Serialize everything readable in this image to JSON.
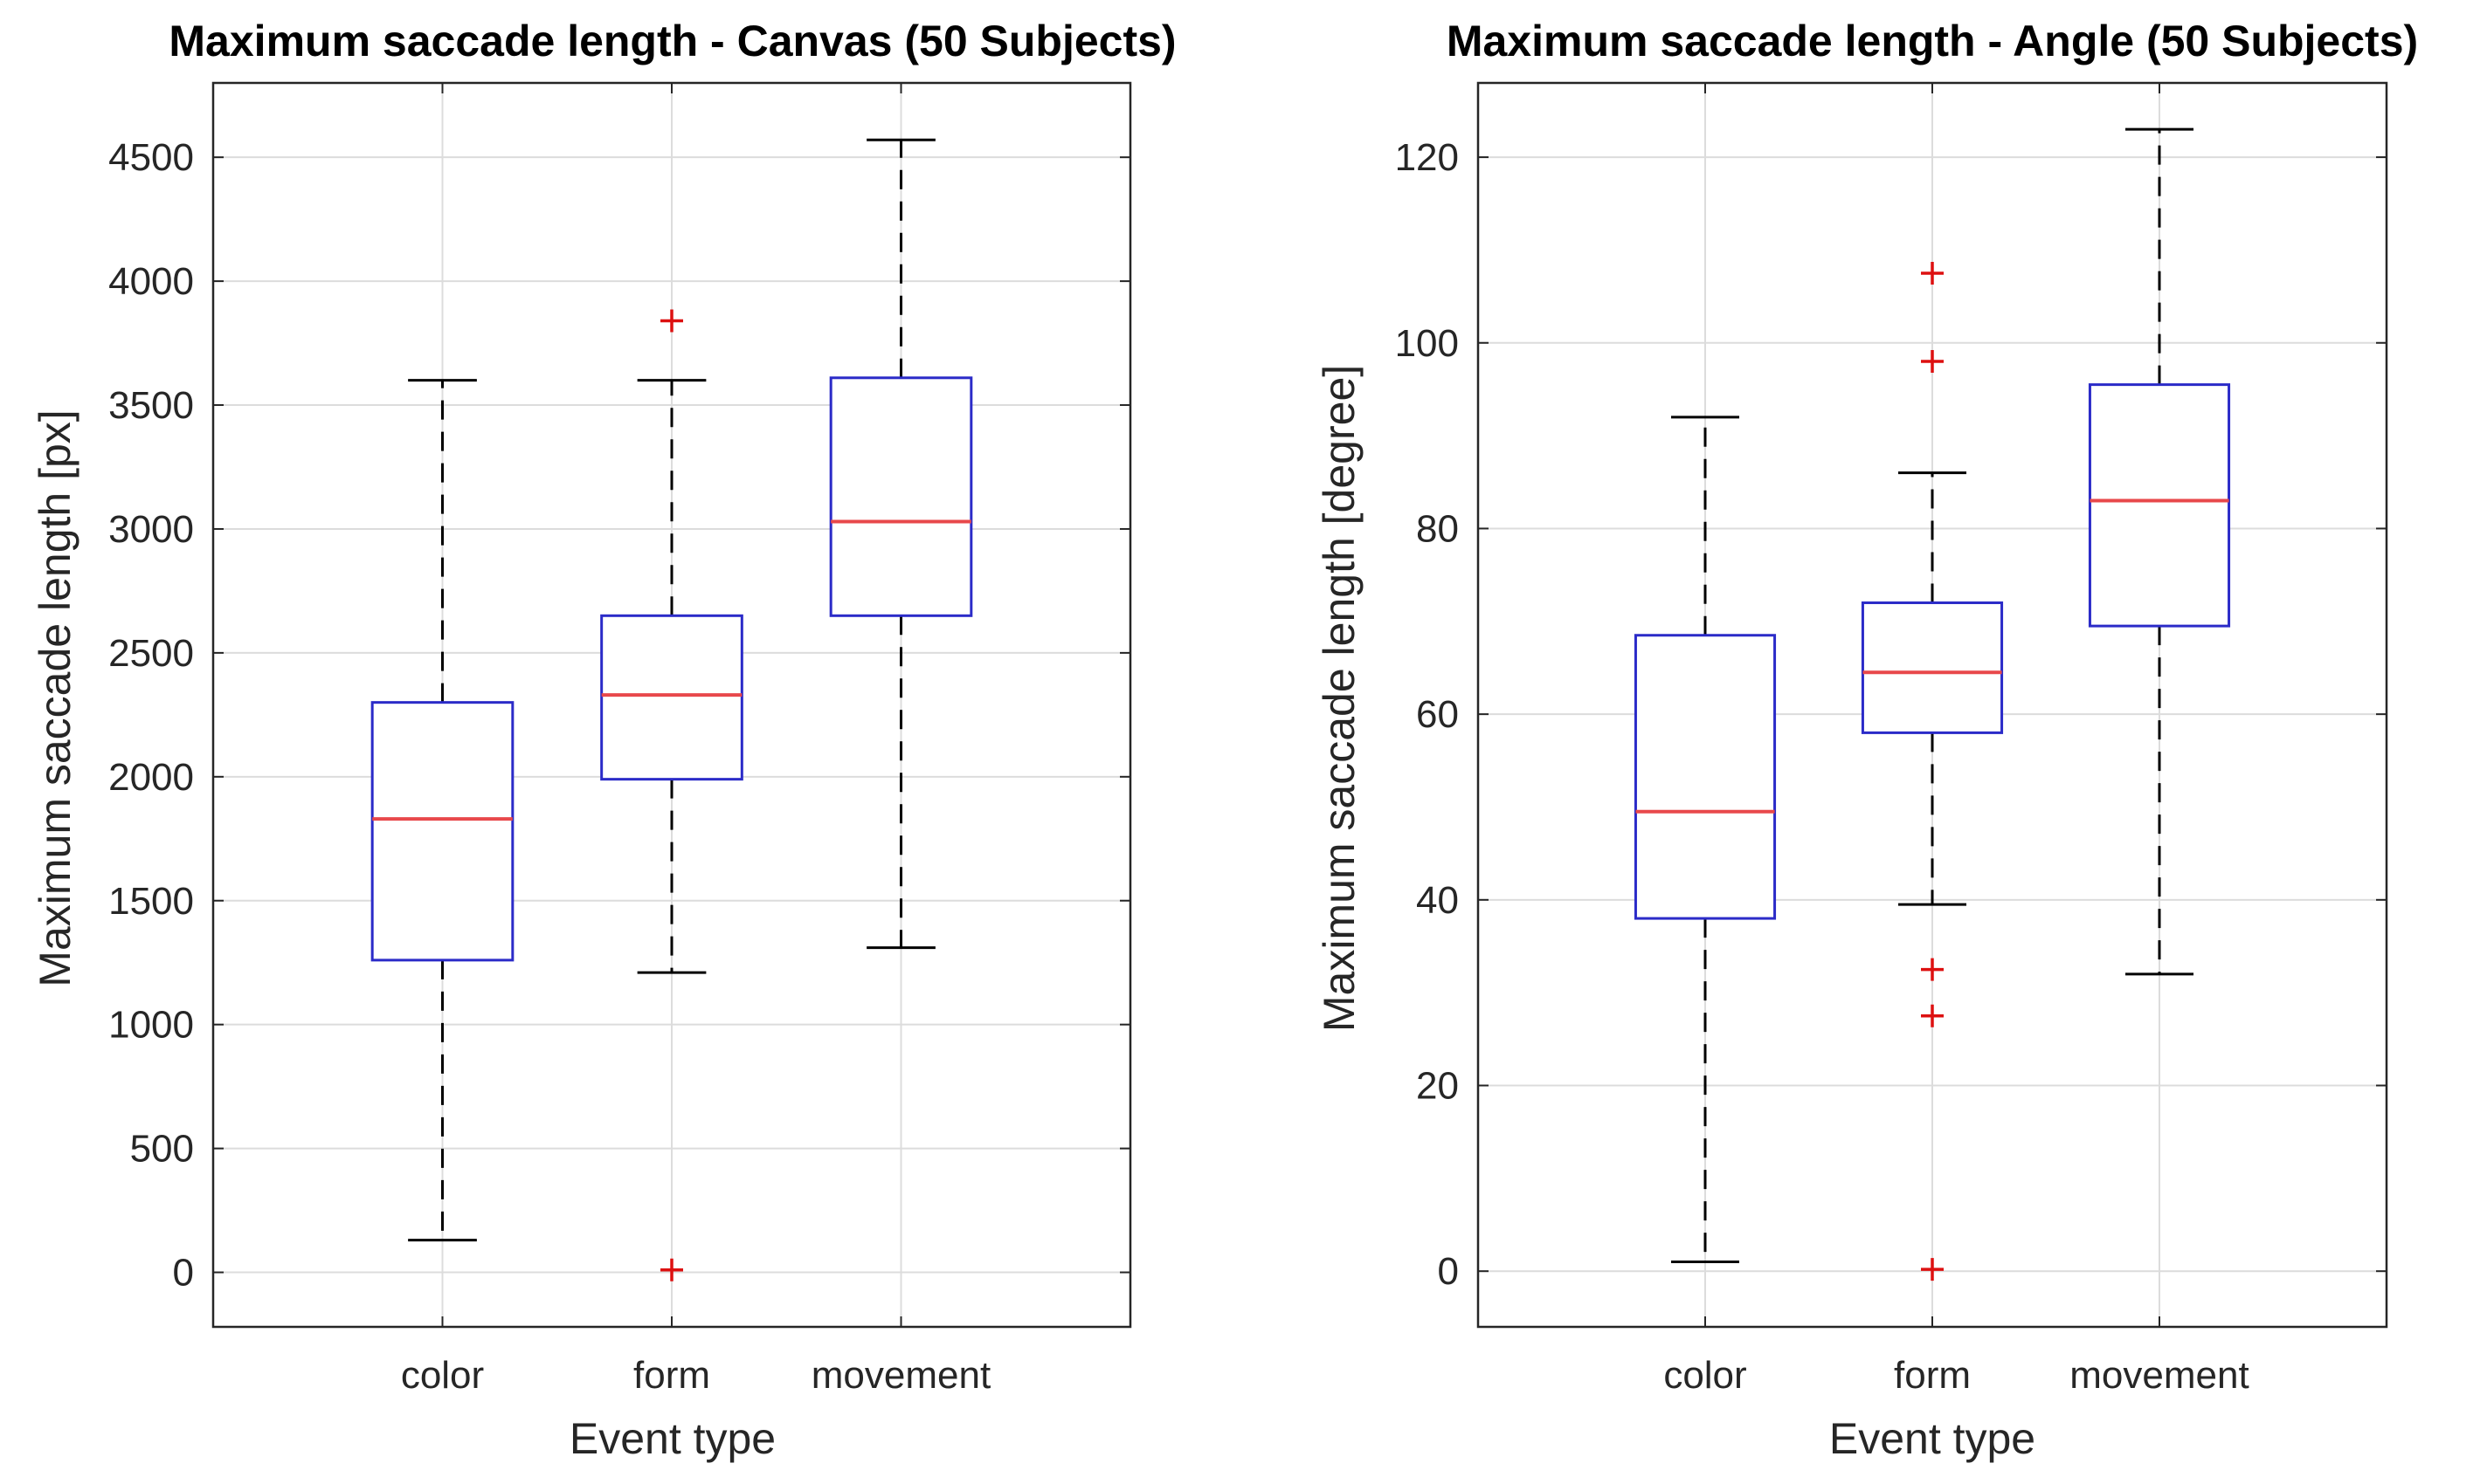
{
  "chart_data": [
    {
      "type": "boxplot",
      "title": "Maximum saccade length - Canvas (50 Subjects)",
      "xlabel": "Event type",
      "ylabel": "Maximum saccade length [px]",
      "ylim": [
        -220,
        4800
      ],
      "yticks": [
        0,
        500,
        1000,
        1500,
        2000,
        2500,
        3000,
        3500,
        4000,
        4500
      ],
      "ytick_labels": [
        "0",
        "500",
        "1000",
        "1500",
        "2000",
        "2500",
        "3000",
        "3500",
        "4000",
        "4500"
      ],
      "grid": true,
      "categories": [
        "color",
        "form",
        "movement"
      ],
      "boxes": [
        {
          "category": "color",
          "whisker_low": 130,
          "q1": 1260,
          "median": 1830,
          "q3": 2300,
          "whisker_high": 3600,
          "outliers": []
        },
        {
          "category": "form",
          "whisker_low": 1210,
          "q1": 1990,
          "median": 2330,
          "q3": 2650,
          "whisker_high": 3600,
          "outliers": [
            10,
            3840
          ]
        },
        {
          "category": "movement",
          "whisker_low": 1310,
          "q1": 2650,
          "median": 3030,
          "q3": 3610,
          "whisker_high": 4570,
          "outliers": []
        }
      ]
    },
    {
      "type": "boxplot",
      "title": "Maximum saccade length  - Angle (50 Subjects)",
      "xlabel": "Event type",
      "ylabel": "Maximum saccade length [degree]",
      "ylim": [
        -6,
        128
      ],
      "yticks": [
        0,
        20,
        40,
        60,
        80,
        100,
        120
      ],
      "ytick_labels": [
        "0",
        "20",
        "40",
        "60",
        "80",
        "100",
        "120"
      ],
      "grid": true,
      "categories": [
        "color",
        "form",
        "movement"
      ],
      "boxes": [
        {
          "category": "color",
          "whisker_low": 1,
          "q1": 38,
          "median": 49.5,
          "q3": 68.5,
          "whisker_high": 92,
          "outliers": []
        },
        {
          "category": "form",
          "whisker_low": 39.5,
          "q1": 58,
          "median": 64.5,
          "q3": 72,
          "whisker_high": 86,
          "outliers": [
            0.2,
            27.5,
            32.5,
            98,
            107.5
          ]
        },
        {
          "category": "movement",
          "whisker_low": 32,
          "q1": 69.5,
          "median": 83,
          "q3": 95.5,
          "whisker_high": 123,
          "outliers": []
        }
      ]
    }
  ],
  "colors": {
    "box": "#2b2bc8",
    "median": "#e8484b",
    "whisker": "#000000",
    "outlier": "#dd1010",
    "grid": "#dcdcdc",
    "axis": "#262626"
  }
}
